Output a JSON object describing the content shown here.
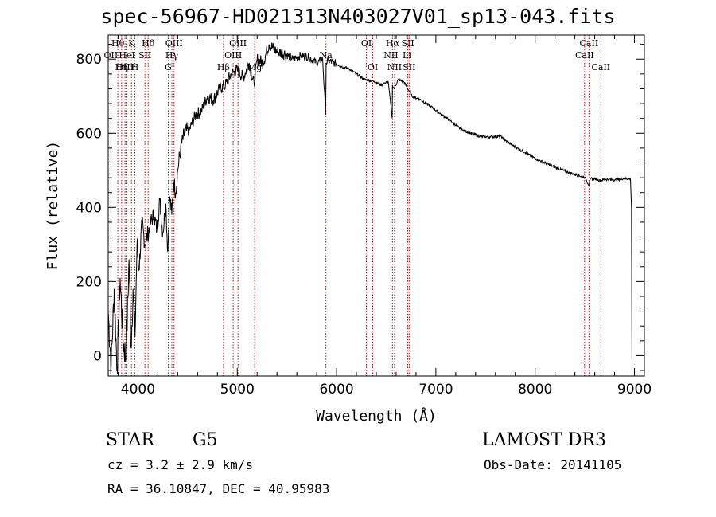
{
  "chart_data": {
    "type": "line",
    "title": "spec-56967-HD021313N403027V01_sp13-043.fits",
    "xlabel": "Wavelength (Å)",
    "ylabel": "Flux (relative)",
    "xlim": [
      3700,
      9100
    ],
    "ylim": [
      -55,
      865
    ],
    "xticks": [
      4000,
      5000,
      6000,
      7000,
      8000,
      9000
    ],
    "xtick_labels": [
      "4000",
      "5000",
      "6000",
      "7000",
      "8000",
      "9000"
    ],
    "yticks": [
      0,
      200,
      400,
      600,
      800
    ],
    "ytick_labels": [
      "0",
      "200",
      "400",
      "600",
      "800"
    ],
    "line_color": "#000000",
    "marker_color": "#cc0000",
    "series": [
      {
        "name": "spectrum",
        "x": [
          3700,
          3730,
          3760,
          3790,
          3820,
          3850,
          3880,
          3910,
          3930,
          3950,
          3970,
          3990,
          4010,
          4040,
          4070,
          4100,
          4130,
          4160,
          4190,
          4220,
          4250,
          4280,
          4300,
          4320,
          4340,
          4360,
          4380,
          4400,
          4430,
          4470,
          4520,
          4580,
          4640,
          4700,
          4760,
          4820,
          4880,
          4940,
          5000,
          5060,
          5120,
          5170,
          5200,
          5260,
          5320,
          5400,
          5480,
          5560,
          5640,
          5720,
          5800,
          5860,
          5890,
          5895,
          5920,
          5980,
          6050,
          6120,
          6200,
          6280,
          6380,
          6450,
          6520,
          6560,
          6563,
          6580,
          6620,
          6680,
          6760,
          6850,
          6950,
          7050,
          7150,
          7250,
          7350,
          7450,
          7550,
          7650,
          7700,
          7800,
          7900,
          8000,
          8100,
          8200,
          8300,
          8400,
          8500,
          8542,
          8560,
          8600,
          8662,
          8700,
          8800,
          8900,
          8960,
          8970,
          8975,
          8980
        ],
        "y": [
          120,
          -30,
          180,
          -40,
          210,
          40,
          -10,
          260,
          20,
          180,
          50,
          300,
          230,
          360,
          300,
          330,
          360,
          380,
          340,
          420,
          330,
          410,
          280,
          430,
          380,
          470,
          440,
          500,
          560,
          600,
          610,
          650,
          660,
          700,
          690,
          720,
          730,
          760,
          770,
          750,
          790,
          730,
          800,
          790,
          840,
          820,
          815,
          800,
          810,
          805,
          790,
          800,
          650,
          790,
          795,
          790,
          780,
          775,
          760,
          745,
          740,
          730,
          740,
          640,
          730,
          720,
          745,
          738,
          700,
          690,
          672,
          652,
          633,
          611,
          600,
          591,
          590,
          592,
          580,
          563,
          548,
          532,
          520,
          508,
          498,
          489,
          481,
          460,
          478,
          477,
          472,
          476,
          474,
          478,
          476,
          400,
          -10,
          -10
        ]
      }
    ],
    "spectral_lines": [
      {
        "label": "Hθ",
        "wavelength": 3797,
        "row": 1
      },
      {
        "label": "OII",
        "wavelength": 3727,
        "row": 2
      },
      {
        "label": "OIII",
        "wavelength": 3869,
        "row": 3
      },
      {
        "label": "K",
        "wavelength": 3934,
        "row": 1
      },
      {
        "label": "HeI",
        "wavelength": 3889,
        "row": 2
      },
      {
        "label": "Hη",
        "wavelength": 3835,
        "row": 3
      },
      {
        "label": "H",
        "wavelength": 3969,
        "row": 3
      },
      {
        "label": "Hδ",
        "wavelength": 4102,
        "row": 1
      },
      {
        "label": "SII",
        "wavelength": 4070,
        "row": 2
      },
      {
        "label": "OIII",
        "wavelength": 4363,
        "row": 1
      },
      {
        "label": "Hγ",
        "wavelength": 4341,
        "row": 2
      },
      {
        "label": "G",
        "wavelength": 4305,
        "row": 3
      },
      {
        "label": "OIII",
        "wavelength": 5007,
        "row": 1
      },
      {
        "label": "OIII",
        "wavelength": 4959,
        "row": 2
      },
      {
        "label": "Hβ",
        "wavelength": 4861,
        "row": 3
      },
      {
        "label": "Mg",
        "wavelength": 5175,
        "row": 3
      },
      {
        "label": "Na",
        "wavelength": 5893,
        "row": 2
      },
      {
        "label": "OI",
        "wavelength": 6300,
        "row": 1
      },
      {
        "label": "OI",
        "wavelength": 6364,
        "row": 3
      },
      {
        "label": "Hα",
        "wavelength": 6563,
        "row": 1
      },
      {
        "label": "SII",
        "wavelength": 6717,
        "row": 1
      },
      {
        "label": "NII",
        "wavelength": 6548,
        "row": 2
      },
      {
        "label": "Li",
        "wavelength": 6708,
        "row": 2
      },
      {
        "label": "NII",
        "wavelength": 6584,
        "row": 3
      },
      {
        "label": "SII",
        "wavelength": 6731,
        "row": 3
      },
      {
        "label": "CaII",
        "wavelength": 8542,
        "row": 1
      },
      {
        "label": "CaII",
        "wavelength": 8498,
        "row": 2
      },
      {
        "label": "CaII",
        "wavelength": 8662,
        "row": 3
      }
    ]
  },
  "info": {
    "object_class": "STAR",
    "subclass": "G5",
    "survey": "LAMOST DR3",
    "cz": "cz = 3.2 ± 2.9 km/s",
    "obs_date": "Obs-Date: 20141105",
    "coords": "RA =  36.10847, DEC =  40.95983"
  }
}
